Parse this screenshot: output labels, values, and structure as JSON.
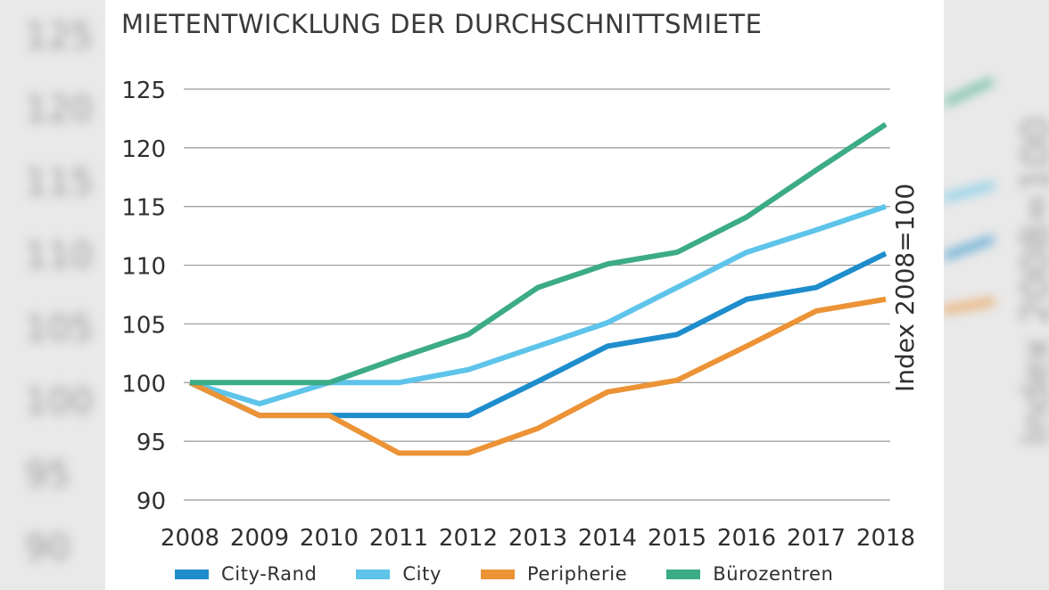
{
  "chart_data": {
    "type": "line",
    "title": "MIETENTWICKLUNG DER DURCHSCHNITTSMIETE",
    "xlabel": "",
    "ylabel": "Index 2008=100",
    "categories": [
      "2008",
      "2009",
      "2010",
      "2011",
      "2012",
      "2013",
      "2014",
      "2015",
      "2016",
      "2017",
      "2018"
    ],
    "yticks": [
      "90",
      "95",
      "100",
      "105",
      "110",
      "115",
      "120",
      "125"
    ],
    "ylim": [
      90,
      125
    ],
    "grid": true,
    "legend_position": "bottom",
    "series": [
      {
        "name": "City-Rand",
        "color": "#1f8dcc",
        "values": [
          100,
          97.2,
          97.2,
          97.2,
          97.2,
          100.1,
          103.1,
          104.1,
          107.1,
          108.1,
          111
        ]
      },
      {
        "name": "City",
        "color": "#5ec4ea",
        "values": [
          100,
          98.2,
          100,
          100,
          101.1,
          103.1,
          105.1,
          108.1,
          111.1,
          113,
          115
        ]
      },
      {
        "name": "Peripherie",
        "color": "#ec9336",
        "values": [
          100,
          97.2,
          97.2,
          94,
          94,
          96.1,
          99.2,
          100.2,
          103.1,
          106.1,
          107.1
        ]
      },
      {
        "name": "Bürozentren",
        "color": "#3cab87",
        "values": [
          100,
          100,
          100,
          102.1,
          104.1,
          108.1,
          110.1,
          111.1,
          114.1,
          118.1,
          122
        ]
      }
    ]
  }
}
